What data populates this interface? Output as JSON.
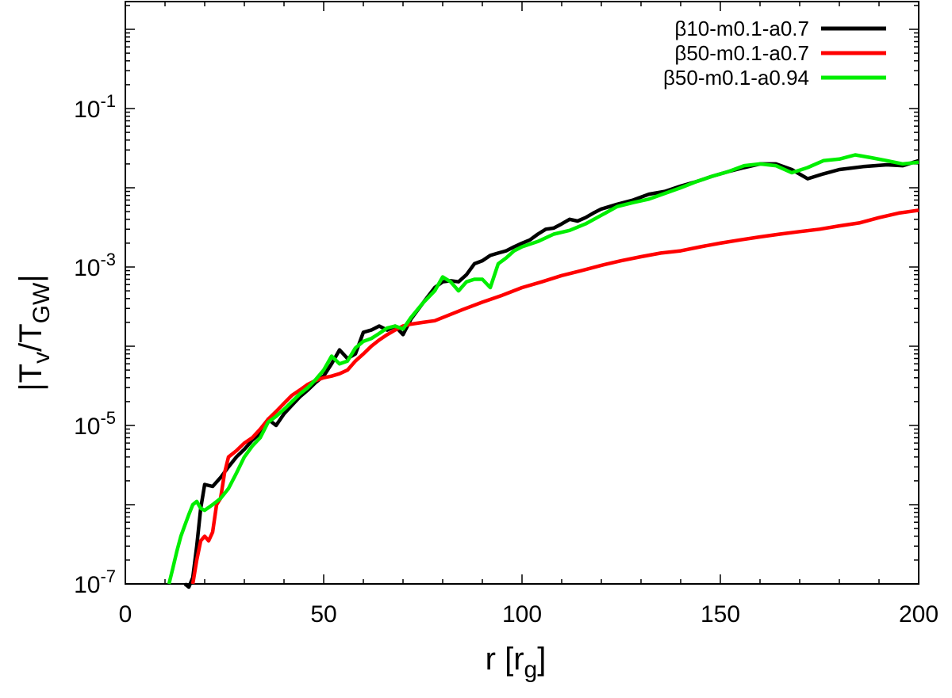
{
  "chart_data": {
    "type": "line",
    "xlabel": "r [r",
    "xlabel_sub": "g",
    "xlabel_suffix": "]",
    "ylabel_prefix": "|T",
    "ylabel_sub1": "v",
    "ylabel_mid": "/T",
    "ylabel_sub2": "GW",
    "ylabel_suffix": "|",
    "xlim": [
      0,
      200
    ],
    "ylim_log10": [
      -7,
      0.35
    ],
    "y_scale": "log",
    "x_ticks": [
      0,
      50,
      100,
      150,
      200
    ],
    "y_ticks": [
      {
        "exp": -1,
        "base": "10",
        "sup": "-1"
      },
      {
        "exp": -3,
        "base": "10",
        "sup": "-3"
      },
      {
        "exp": -5,
        "base": "10",
        "sup": "-5"
      },
      {
        "exp": -7,
        "base": "10",
        "sup": "-7"
      }
    ],
    "legend_position": "top-right",
    "series": [
      {
        "name": "β10-m0.1-a0.7",
        "color": "#000000",
        "x": [
          15,
          16,
          17,
          18,
          19,
          20,
          22,
          24,
          26,
          28,
          30,
          32,
          34,
          36,
          38,
          40,
          42,
          44,
          46,
          48,
          50,
          52,
          54,
          56,
          58,
          60,
          62,
          64,
          66,
          68,
          70,
          72,
          75,
          78,
          80,
          82,
          84,
          86,
          88,
          90,
          92,
          94,
          96,
          98,
          100,
          102,
          104,
          106,
          108,
          110,
          112,
          114,
          116,
          118,
          120,
          124,
          128,
          132,
          136,
          140,
          144,
          148,
          152,
          156,
          160,
          164,
          168,
          172,
          176,
          180,
          186,
          192,
          196,
          200
        ],
        "y": [
          1e-07,
          8e-08,
          1.2e-07,
          3e-07,
          9e-07,
          1.8e-06,
          1.7e-06,
          2.2e-06,
          3e-06,
          4e-06,
          5e-06,
          6.5e-06,
          8e-06,
          1.2e-05,
          1e-05,
          1.4e-05,
          1.8e-05,
          2.3e-05,
          2.8e-05,
          3.5e-05,
          4.2e-05,
          6e-05,
          9e-05,
          7e-05,
          8e-05,
          0.00015,
          0.00016,
          0.00018,
          0.00016,
          0.00018,
          0.00014,
          0.00022,
          0.00035,
          0.00055,
          0.00065,
          0.00067,
          0.00065,
          0.0008,
          0.0011,
          0.0012,
          0.0014,
          0.0015,
          0.0016,
          0.0018,
          0.002,
          0.0022,
          0.0026,
          0.003,
          0.0031,
          0.0035,
          0.004,
          0.0038,
          0.0042,
          0.0048,
          0.0054,
          0.0062,
          0.007,
          0.0083,
          0.009,
          0.0105,
          0.012,
          0.014,
          0.016,
          0.018,
          0.02,
          0.02,
          0.017,
          0.013,
          0.015,
          0.017,
          0.0185,
          0.0195,
          0.019,
          0.022
        ]
      },
      {
        "name": "β50-m0.1-a0.7",
        "color": "#ff0000",
        "x": [
          17,
          18,
          19,
          20,
          21,
          22,
          23,
          24,
          25,
          26,
          28,
          30,
          32,
          34,
          36,
          38,
          40,
          42,
          44,
          46,
          48,
          50,
          52,
          54,
          56,
          58,
          60,
          62,
          64,
          66,
          68,
          70,
          72,
          75,
          78,
          80,
          85,
          90,
          95,
          100,
          105,
          110,
          115,
          120,
          125,
          130,
          135,
          140,
          145,
          150,
          155,
          160,
          165,
          170,
          175,
          180,
          185,
          190,
          195,
          200
        ],
        "y": [
          1e-07,
          2e-07,
          3.5e-07,
          4e-07,
          3.5e-07,
          4.5e-07,
          1e-06,
          1.2e-06,
          2.5e-06,
          4e-06,
          4.8e-06,
          6e-06,
          7e-06,
          9e-06,
          1.2e-05,
          1.5e-05,
          1.9e-05,
          2.4e-05,
          2.8e-05,
          3.3e-05,
          3.7e-05,
          4e-05,
          4.2e-05,
          4.5e-05,
          5e-05,
          6.5e-05,
          8e-05,
          0.0001,
          0.00012,
          0.00014,
          0.00016,
          0.00018,
          0.00019,
          0.0002,
          0.00021,
          0.00023,
          0.00029,
          0.00036,
          0.00044,
          0.00055,
          0.00065,
          0.00078,
          0.0009,
          0.00105,
          0.0012,
          0.00135,
          0.0015,
          0.0016,
          0.0018,
          0.002,
          0.0022,
          0.0024,
          0.0026,
          0.0028,
          0.003,
          0.0033,
          0.0036,
          0.0042,
          0.0048,
          0.0052
        ]
      },
      {
        "name": "β50-m0.1-a0.94",
        "color": "#00ee00",
        "x": [
          11,
          12,
          13,
          14,
          15,
          16,
          17,
          18,
          19,
          20,
          22,
          24,
          26,
          28,
          30,
          32,
          34,
          36,
          38,
          40,
          42,
          44,
          46,
          48,
          50,
          52,
          54,
          56,
          58,
          60,
          62,
          64,
          66,
          68,
          70,
          72,
          75,
          78,
          80,
          82,
          84,
          86,
          88,
          90,
          92,
          94,
          96,
          98,
          100,
          104,
          108,
          112,
          116,
          120,
          124,
          128,
          132,
          136,
          140,
          144,
          148,
          152,
          156,
          160,
          164,
          168,
          172,
          176,
          180,
          184,
          188,
          192,
          196,
          200
        ],
        "y": [
          1e-07,
          1.6e-07,
          2.6e-07,
          4e-07,
          5.5e-07,
          7.5e-07,
          1e-06,
          1.1e-06,
          9e-07,
          8.5e-07,
          1e-06,
          1.2e-06,
          1.6e-06,
          2.5e-06,
          4e-06,
          5.5e-06,
          7e-06,
          1.1e-05,
          1.3e-05,
          1.6e-05,
          2e-05,
          2.5e-05,
          3e-05,
          3.8e-05,
          5e-05,
          7.5e-05,
          6e-05,
          6.5e-05,
          9.5e-05,
          0.000115,
          0.000125,
          0.000145,
          0.00017,
          0.00018,
          0.000165,
          0.00023,
          0.00035,
          0.0005,
          0.00075,
          0.00065,
          0.0005,
          0.00065,
          0.0007,
          0.0007,
          0.00055,
          0.0011,
          0.0013,
          0.0016,
          0.0018,
          0.0021,
          0.0026,
          0.0029,
          0.0035,
          0.0045,
          0.0058,
          0.0065,
          0.0072,
          0.0085,
          0.01,
          0.012,
          0.014,
          0.016,
          0.019,
          0.02,
          0.019,
          0.0155,
          0.018,
          0.022,
          0.023,
          0.026,
          0.024,
          0.022,
          0.02,
          0.021
        ]
      }
    ]
  }
}
